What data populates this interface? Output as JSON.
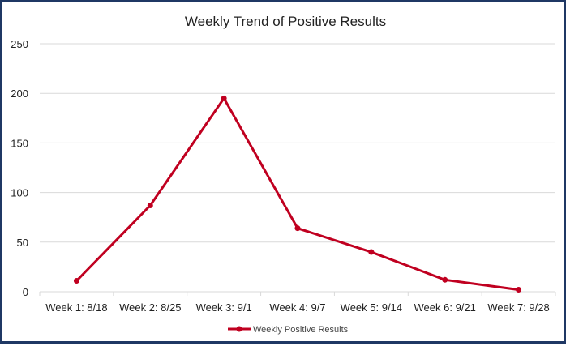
{
  "chart_data": {
    "type": "line",
    "title": "Weekly Trend of Positive Results",
    "xlabel": "",
    "ylabel": "",
    "categories": [
      "Week 1: 8/18",
      "Week 2: 8/25",
      "Week 3: 9/1",
      "Week 4: 9/7",
      "Week 5: 9/14",
      "Week 6: 9/21",
      "Week 7: 9/28"
    ],
    "series": [
      {
        "name": "Weekly Positive Results",
        "values": [
          11,
          87,
          195,
          64,
          40,
          12,
          2
        ]
      }
    ],
    "ylim": [
      0,
      250
    ],
    "yticks": [
      "0",
      "50",
      "100",
      "150",
      "200",
      "250"
    ],
    "grid": true,
    "legend": "bottom",
    "colors": {
      "series": "#c00020",
      "grid": "#d9d9d9",
      "border": "#1f3864"
    }
  }
}
